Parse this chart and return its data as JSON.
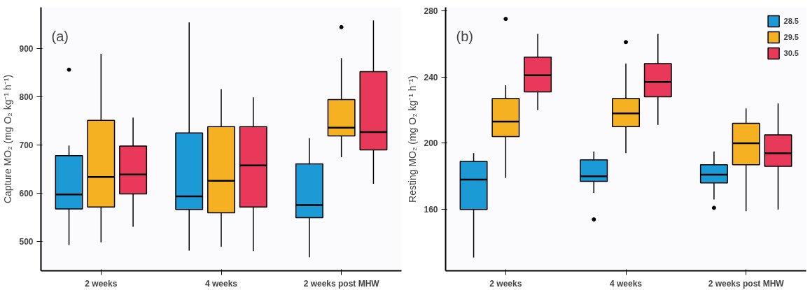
{
  "chart_data": [
    {
      "type": "box",
      "annotations": [
        "(a)"
      ],
      "ylabel": "Capture MO₂ (mg O₂ kg⁻¹ h⁻¹)",
      "categories": [
        "2 weeks",
        "4 weeks",
        "2 weeks post MHW"
      ],
      "ylim": [
        440,
        985
      ],
      "yticks": [
        500,
        600,
        700,
        800,
        900
      ],
      "series": [
        {
          "color": "#1b9ad6",
          "boxes": [
            {
              "low": 493,
              "q1": 568,
              "median": 598,
              "q3": 678,
              "high": 699,
              "outliers": [
                856
              ]
            },
            {
              "low": 482,
              "q1": 567,
              "median": 594,
              "q3": 725,
              "high": 954
            },
            {
              "low": 468,
              "q1": 550,
              "median": 576,
              "q3": 661,
              "high": 714
            }
          ]
        },
        {
          "color": "#f5b122",
          "boxes": [
            {
              "low": 499,
              "q1": 572,
              "median": 634,
              "q3": 751,
              "high": 889
            },
            {
              "low": 490,
              "q1": 560,
              "median": 626,
              "q3": 738,
              "high": 816
            },
            {
              "low": 675,
              "q1": 719,
              "median": 736,
              "q3": 794,
              "high": 880,
              "outliers": [
                944
              ]
            }
          ]
        },
        {
          "color": "#e8395a",
          "boxes": [
            {
              "low": 531,
              "q1": 599,
              "median": 639,
              "q3": 698,
              "high": 757
            },
            {
              "low": 481,
              "q1": 572,
              "median": 658,
              "q3": 738,
              "high": 799
            },
            {
              "low": 620,
              "q1": 690,
              "median": 727,
              "q3": 852,
              "high": 958
            }
          ]
        }
      ]
    },
    {
      "type": "box",
      "annotations": [
        "(b)"
      ],
      "ylabel": "Resting MO₂ (mg O₂ kg⁻¹ h⁻¹)",
      "categories": [
        "2 weeks",
        "4 weeks",
        "2 weeks post MHW"
      ],
      "ylim": [
        123,
        282
      ],
      "yticks": [
        160,
        200,
        240,
        280
      ],
      "legend": "top right",
      "series": [
        {
          "name": "28.5",
          "color": "#1b9ad6",
          "boxes": [
            {
              "low": 131,
              "q1": 160,
              "median": 178,
              "q3": 189,
              "high": 194
            },
            {
              "low": 170,
              "q1": 177,
              "median": 180,
              "q3": 190,
              "high": 195,
              "outliers": [
                154
              ]
            },
            {
              "low": 166,
              "q1": 176,
              "median": 181,
              "q3": 187,
              "high": 195,
              "outliers": [
                161
              ]
            }
          ]
        },
        {
          "name": "29.5",
          "color": "#f5b122",
          "boxes": [
            {
              "low": 179,
              "q1": 204,
              "median": 213,
              "q3": 227,
              "high": 235,
              "outliers": [
                275
              ]
            },
            {
              "low": 194,
              "q1": 210,
              "median": 218,
              "q3": 227,
              "high": 248,
              "outliers": [
                261
              ]
            },
            {
              "low": 159,
              "q1": 187,
              "median": 200,
              "q3": 212,
              "high": 221
            }
          ]
        },
        {
          "name": "30.5",
          "color": "#e8395a",
          "boxes": [
            {
              "low": 220,
              "q1": 231,
              "median": 241,
              "q3": 252,
              "high": 266
            },
            {
              "low": 211,
              "q1": 228,
              "median": 237,
              "q3": 248,
              "high": 266
            },
            {
              "low": 160,
              "q1": 186,
              "median": 194,
              "q3": 205,
              "high": 224
            }
          ]
        }
      ]
    }
  ]
}
